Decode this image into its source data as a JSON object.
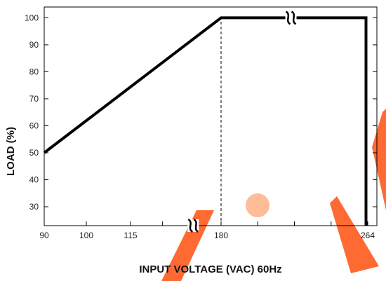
{
  "chart_data": {
    "type": "line",
    "title": "",
    "xlabel": "INPUT VOLTAGE (VAC) 60Hz",
    "ylabel": "LOAD (%)",
    "x_tick_labels": [
      "90",
      "100",
      "115",
      "180",
      "264"
    ],
    "x_tick_values": [
      90,
      100,
      115,
      180,
      264
    ],
    "y_ticks": [
      30,
      40,
      50,
      60,
      70,
      80,
      90,
      100
    ],
    "xlim": [
      90,
      265
    ],
    "ylim": [
      23,
      104
    ],
    "grid": false,
    "x_axis_break": true,
    "series": [
      {
        "x": [
          90,
          180,
          263,
          263
        ],
        "y": [
          50,
          100,
          100,
          23
        ]
      }
    ],
    "reference_lines": [
      {
        "orientation": "vertical",
        "x": 180,
        "y_from": 23,
        "y_to": 100,
        "style": "dashed"
      }
    ],
    "break_marks": [
      {
        "axis": "x",
        "x": 160
      },
      {
        "on_series": true,
        "x": 220,
        "y": 100
      }
    ],
    "colors": {
      "line": "#000000",
      "watermark": "#ff5a1e"
    }
  }
}
